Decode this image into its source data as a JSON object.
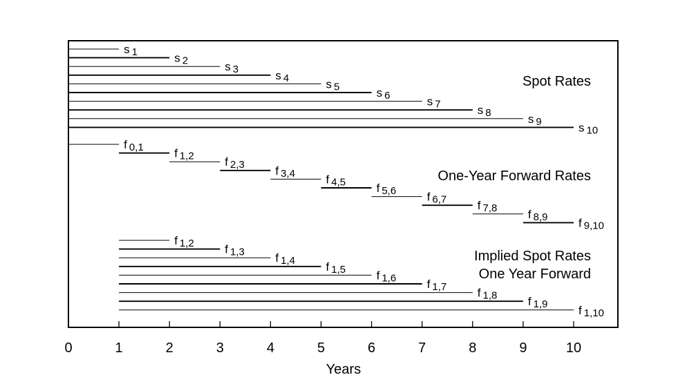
{
  "x_axis": {
    "label": "Years",
    "min": 0,
    "max": 10,
    "ticks": [
      "0",
      "1",
      "2",
      "3",
      "4",
      "5",
      "6",
      "7",
      "8",
      "9",
      "10"
    ]
  },
  "groups": [
    {
      "name": "spot",
      "labels": [
        "Spot Rates"
      ],
      "lines": [
        {
          "start": 0,
          "end": 1,
          "letter": "s",
          "sub": "1"
        },
        {
          "start": 0,
          "end": 2,
          "letter": "s",
          "sub": "2"
        },
        {
          "start": 0,
          "end": 3,
          "letter": "s",
          "sub": "3"
        },
        {
          "start": 0,
          "end": 4,
          "letter": "s",
          "sub": "4"
        },
        {
          "start": 0,
          "end": 5,
          "letter": "s",
          "sub": "5"
        },
        {
          "start": 0,
          "end": 6,
          "letter": "s",
          "sub": "6"
        },
        {
          "start": 0,
          "end": 7,
          "letter": "s",
          "sub": "7"
        },
        {
          "start": 0,
          "end": 8,
          "letter": "s",
          "sub": "8"
        },
        {
          "start": 0,
          "end": 9,
          "letter": "s",
          "sub": "9"
        },
        {
          "start": 0,
          "end": 10,
          "letter": "s",
          "sub": "10"
        }
      ]
    },
    {
      "name": "forward",
      "labels": [
        "One-Year Forward Rates"
      ],
      "lines": [
        {
          "start": 0,
          "end": 1,
          "letter": "f",
          "sub": "0,1"
        },
        {
          "start": 1,
          "end": 2,
          "letter": "f",
          "sub": "1,2"
        },
        {
          "start": 2,
          "end": 3,
          "letter": "f",
          "sub": "2,3"
        },
        {
          "start": 3,
          "end": 4,
          "letter": "f",
          "sub": "3,4"
        },
        {
          "start": 4,
          "end": 5,
          "letter": "f",
          "sub": "4,5"
        },
        {
          "start": 5,
          "end": 6,
          "letter": "f",
          "sub": "5,6"
        },
        {
          "start": 6,
          "end": 7,
          "letter": "f",
          "sub": "6,7"
        },
        {
          "start": 7,
          "end": 8,
          "letter": "f",
          "sub": "7,8"
        },
        {
          "start": 8,
          "end": 9,
          "letter": "f",
          "sub": "8,9"
        },
        {
          "start": 9,
          "end": 10,
          "letter": "f",
          "sub": "9,10"
        }
      ]
    },
    {
      "name": "implied",
      "labels": [
        "Implied Spot Rates",
        "One Year Forward"
      ],
      "lines": [
        {
          "start": 1,
          "end": 2,
          "letter": "f",
          "sub": "1,2"
        },
        {
          "start": 1,
          "end": 3,
          "letter": "f",
          "sub": "1,3"
        },
        {
          "start": 1,
          "end": 4,
          "letter": "f",
          "sub": "1,4"
        },
        {
          "start": 1,
          "end": 5,
          "letter": "f",
          "sub": "1,5"
        },
        {
          "start": 1,
          "end": 6,
          "letter": "f",
          "sub": "1,6"
        },
        {
          "start": 1,
          "end": 7,
          "letter": "f",
          "sub": "1,7"
        },
        {
          "start": 1,
          "end": 8,
          "letter": "f",
          "sub": "1,8"
        },
        {
          "start": 1,
          "end": 9,
          "letter": "f",
          "sub": "1,9"
        },
        {
          "start": 1,
          "end": 10,
          "letter": "f",
          "sub": "1,10"
        }
      ]
    }
  ]
}
